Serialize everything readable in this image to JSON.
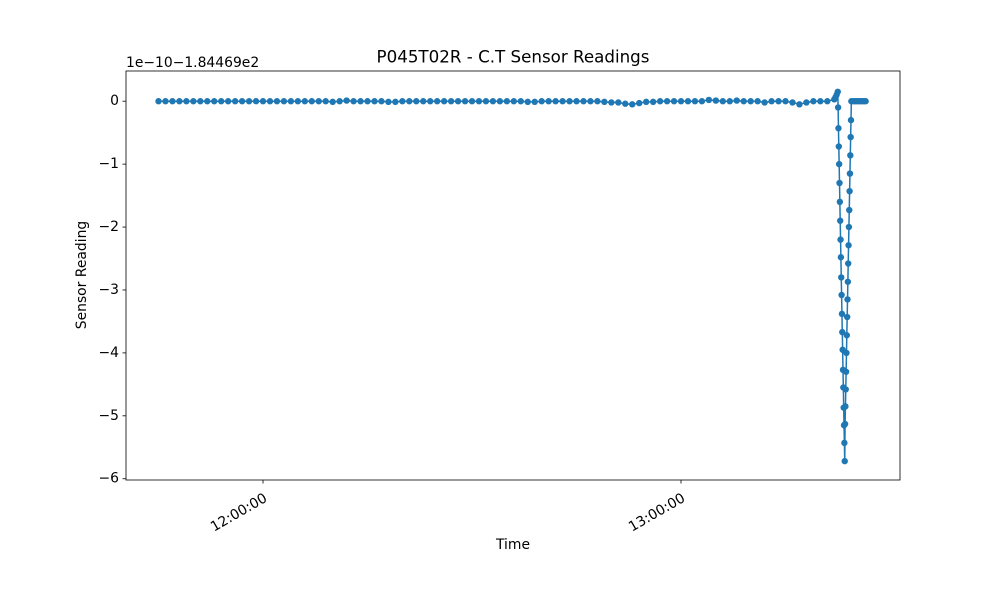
{
  "chart_data": {
    "type": "line",
    "title": "P045T02R - C.T Sensor Readings",
    "x_label": "Time",
    "y_label": "Sensor Reading",
    "y_offset_label": "1e−10−1.84469e2",
    "color": "#1f77b4",
    "marker": true,
    "x": [
      "11:45:00",
      "11:46:00",
      "11:47:00",
      "11:48:00",
      "11:49:00",
      "11:50:00",
      "11:51:00",
      "11:52:00",
      "11:53:00",
      "11:54:00",
      "11:55:00",
      "11:56:00",
      "11:57:00",
      "11:58:00",
      "11:59:00",
      "12:00:00",
      "12:01:00",
      "12:02:00",
      "12:03:00",
      "12:04:00",
      "12:05:00",
      "12:06:00",
      "12:07:00",
      "12:08:00",
      "12:09:00",
      "12:10:00",
      "12:11:00",
      "12:12:00",
      "12:13:00",
      "12:14:00",
      "12:15:00",
      "12:16:00",
      "12:17:00",
      "12:18:00",
      "12:19:00",
      "12:20:00",
      "12:21:00",
      "12:22:00",
      "12:23:00",
      "12:24:00",
      "12:25:00",
      "12:26:00",
      "12:27:00",
      "12:28:00",
      "12:29:00",
      "12:30:00",
      "12:31:00",
      "12:32:00",
      "12:33:00",
      "12:34:00",
      "12:35:00",
      "12:36:00",
      "12:37:00",
      "12:38:00",
      "12:39:00",
      "12:40:00",
      "12:41:00",
      "12:42:00",
      "12:43:00",
      "12:44:00",
      "12:45:00",
      "12:46:00",
      "12:47:00",
      "12:48:00",
      "12:49:00",
      "12:50:00",
      "12:51:00",
      "12:52:00",
      "12:53:00",
      "12:54:00",
      "12:55:00",
      "12:56:00",
      "12:57:00",
      "12:58:00",
      "12:59:00",
      "13:00:00",
      "13:01:00",
      "13:02:00",
      "13:03:00",
      "13:04:00",
      "13:05:00",
      "13:06:00",
      "13:07:00",
      "13:08:00",
      "13:09:00",
      "13:10:00",
      "13:11:00",
      "13:12:00",
      "13:13:00",
      "13:14:00",
      "13:15:00",
      "13:16:00",
      "13:17:00",
      "13:18:00",
      "13:19:00",
      "13:20:00",
      "13:21:00",
      "13:22:00",
      "13:22:10",
      "13:22:20",
      "13:22:30",
      "13:22:33",
      "13:22:36",
      "13:22:39",
      "13:22:42",
      "13:22:45",
      "13:22:48",
      "13:22:51",
      "13:22:54",
      "13:22:57",
      "13:23:00",
      "13:23:03",
      "13:23:06",
      "13:23:09",
      "13:23:12",
      "13:23:15",
      "13:23:18",
      "13:23:21",
      "13:23:24",
      "13:23:27",
      "13:23:30",
      "13:23:33",
      "13:23:36",
      "13:23:39",
      "13:23:42",
      "13:23:45",
      "13:23:48",
      "13:23:51",
      "13:23:54",
      "13:23:57",
      "13:24:00",
      "13:24:03",
      "13:24:06",
      "13:24:09",
      "13:24:12",
      "13:24:15",
      "13:24:18",
      "13:24:21",
      "13:24:24",
      "13:24:27",
      "13:24:45",
      "13:25:00",
      "13:25:15",
      "13:25:30",
      "13:25:45",
      "13:26:00",
      "13:26:15",
      "13:26:30"
    ],
    "values": [
      0,
      0,
      0,
      0,
      0,
      0,
      0,
      0,
      0,
      0,
      0,
      0,
      0,
      0,
      0,
      0,
      0,
      0,
      0,
      0,
      0,
      0,
      0,
      0,
      0,
      -0.01,
      0,
      0.01,
      0,
      0,
      0,
      0,
      0,
      -0.01,
      -0.01,
      0,
      0,
      0,
      0,
      0,
      0,
      0,
      0,
      0,
      0,
      0,
      0,
      0,
      0,
      0,
      0,
      0,
      0,
      -0.01,
      -0.01,
      0,
      0,
      0,
      0,
      0,
      0,
      0,
      0,
      0,
      -0.01,
      -0.02,
      -0.02,
      -0.04,
      -0.05,
      -0.03,
      -0.01,
      -0.01,
      0,
      0,
      0,
      0,
      0,
      0,
      0,
      0.02,
      0.01,
      0,
      0,
      0.01,
      0,
      0,
      0,
      -0.02,
      0,
      0,
      0,
      -0.02,
      -0.05,
      -0.02,
      0,
      0,
      0,
      0.03,
      0.06,
      0.1,
      0.15,
      -0.1,
      -0.43,
      -0.72,
      -1.0,
      -1.3,
      -1.6,
      -1.9,
      -2.2,
      -2.48,
      -2.8,
      -3.08,
      -3.38,
      -3.67,
      -3.95,
      -4.27,
      -4.55,
      -4.87,
      -5.15,
      -5.43,
      -5.72,
      -5.13,
      -4.85,
      -4.58,
      -4.3,
      -4.0,
      -3.72,
      -3.43,
      -3.15,
      -2.87,
      -2.58,
      -2.29,
      -2.0,
      -1.73,
      -1.43,
      -1.15,
      -0.86,
      -0.57,
      -0.3,
      0,
      0,
      0,
      0,
      0,
      0,
      0,
      0,
      0
    ],
    "xlim": [
      "11:40:20",
      "13:31:26"
    ],
    "xticks": [
      "12:00:00",
      "13:00:00"
    ],
    "ylim": [
      -6.02,
      0.48
    ],
    "yticks": [
      0,
      {
        "value": -1,
        "label": "−1"
      },
      {
        "value": -2,
        "label": "−2"
      },
      {
        "value": -3,
        "label": "−3"
      },
      {
        "value": -4,
        "label": "−4"
      },
      {
        "value": -5,
        "label": "−5"
      },
      {
        "value": -6,
        "label": "−6"
      }
    ],
    "grid": false
  }
}
